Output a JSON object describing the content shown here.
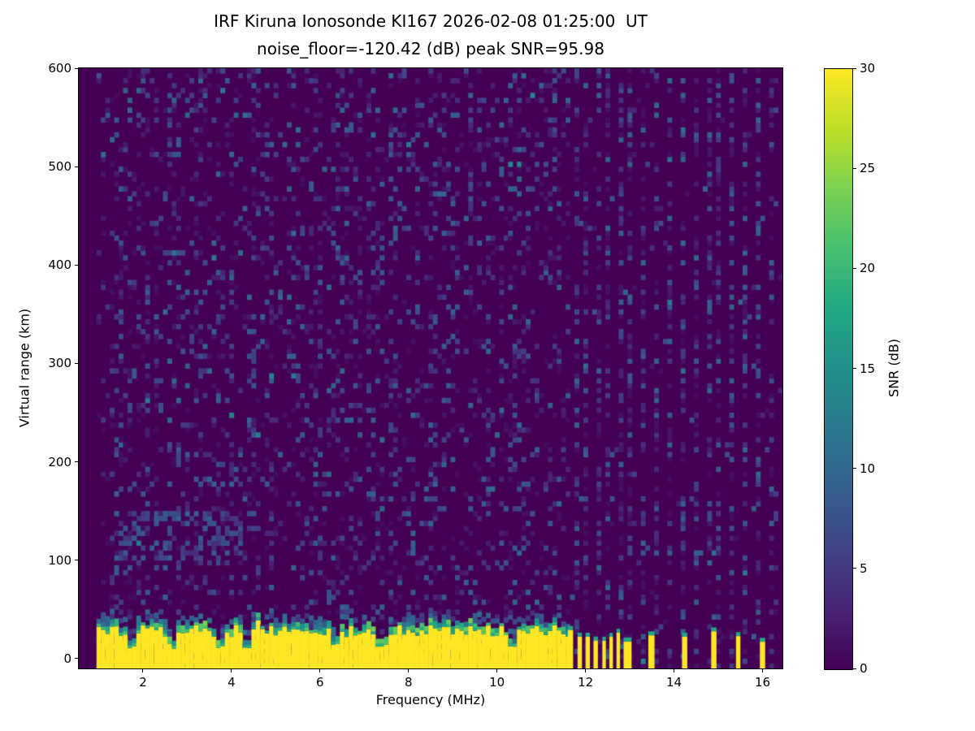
{
  "chart_data": {
    "type": "heatmap",
    "title": "IRF Kiruna Ionosonde KI167 2026-02-08 01:25:00  UT",
    "subtitle": "noise_floor=-120.42 (dB) peak SNR=95.98",
    "station": "IRF Kiruna Ionosonde KI167",
    "timestamp_ut": "2026-02-08 01:25:00",
    "noise_floor_db": -120.42,
    "peak_snr_db": 95.98,
    "xlabel": "Frequency (MHz)",
    "ylabel": "Virtual range (km)",
    "xlim": [
      0.55,
      16.45
    ],
    "ylim": [
      -10,
      600
    ],
    "xticks": [
      2,
      4,
      6,
      8,
      10,
      12,
      14,
      16
    ],
    "yticks": [
      0,
      100,
      200,
      300,
      400,
      500,
      600
    ],
    "grid": false,
    "legend": "none",
    "colorbar": {
      "label": "SNR (dB)",
      "min": 0,
      "max": 30,
      "ticks": [
        0,
        5,
        10,
        15,
        20,
        25,
        30
      ],
      "colormap": "viridis",
      "position": "right"
    },
    "viridis_stops": [
      "#440154",
      "#482475",
      "#414487",
      "#355f8d",
      "#2a788e",
      "#21918c",
      "#22a884",
      "#44bf70",
      "#7ad151",
      "#bddf26",
      "#fde725"
    ],
    "features": {
      "data_freq_start": 0.95,
      "background_snr_db": 0,
      "noise_speckle": {
        "freq_range": [
          0.95,
          11.55
        ],
        "density": 0.18,
        "snr_range_db": [
          1,
          12
        ]
      },
      "ground_echo": {
        "freq_range": [
          0.95,
          11.55
        ],
        "snr_db": 30,
        "top_km_mean": 28,
        "top_km_jitter": 12,
        "notch_freqs_mhz": [
          1.7,
          2.6,
          3.7,
          4.3,
          6.3,
          7.35,
          10.3
        ]
      },
      "weak_trace": {
        "freq_range": [
          1.3,
          4.2
        ],
        "range_km": [
          100,
          145
        ],
        "snr_range_db": [
          3,
          9
        ]
      },
      "rfi_quiet_above_mhz": 11.55,
      "rfi_stripe_freqs_mhz": [
        11.7,
        11.95,
        12.2,
        12.45,
        12.7,
        12.95,
        13.2,
        13.5,
        13.8,
        14.1,
        14.4,
        14.7,
        14.95,
        15.2,
        15.5,
        15.8,
        16.1
      ],
      "bottom_bars_mhz": [
        [
          11.6,
          11.72
        ],
        [
          11.82,
          11.92
        ],
        [
          12.0,
          12.1
        ],
        [
          12.18,
          12.28
        ],
        [
          12.38,
          12.46
        ],
        [
          12.54,
          12.62
        ],
        [
          12.7,
          12.78
        ],
        [
          12.86,
          13.04
        ],
        [
          13.42,
          13.56
        ],
        [
          14.18,
          14.3
        ],
        [
          14.84,
          14.96
        ],
        [
          15.4,
          15.5
        ],
        [
          15.94,
          16.06
        ]
      ]
    }
  }
}
